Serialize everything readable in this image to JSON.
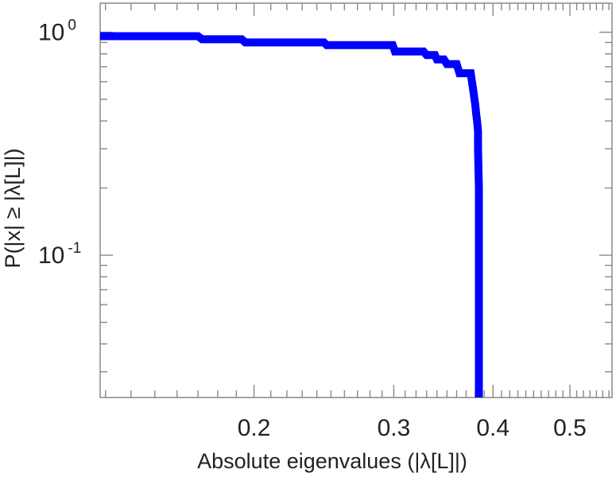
{
  "chart_data": {
    "type": "line",
    "title": "",
    "xlabel": "Absolute eigenvalues (|λ[L]|)",
    "ylabel": "P(|x| ≥ |λ[L]|)",
    "xscale": "log",
    "yscale": "log",
    "xlim": [
      0.128,
      0.565
    ],
    "ylim": [
      0.023,
      1.35
    ],
    "x_ticks": [
      {
        "value": 0.2,
        "label": "0.2"
      },
      {
        "value": 0.3,
        "label": "0.3"
      },
      {
        "value": 0.4,
        "label": "0.4"
      },
      {
        "value": 0.5,
        "label": "0.5"
      }
    ],
    "y_ticks": [
      {
        "value": 1,
        "base": "10",
        "exp": "0"
      },
      {
        "value": 0.1,
        "base": "10",
        "exp": "-1"
      }
    ],
    "grid": false,
    "legend": "none",
    "series": [
      {
        "color": "#0000ff",
        "x": [
          0.128,
          0.17,
          0.172,
          0.193,
          0.195,
          0.245,
          0.247,
          0.299,
          0.301,
          0.327,
          0.33,
          0.338,
          0.34,
          0.347,
          0.35,
          0.36,
          0.363,
          0.375,
          0.378,
          0.38,
          0.381,
          0.382,
          0.383,
          0.383,
          0.384,
          0.384
        ],
        "y": [
          0.96,
          0.96,
          0.93,
          0.93,
          0.9,
          0.9,
          0.875,
          0.875,
          0.82,
          0.82,
          0.79,
          0.79,
          0.755,
          0.755,
          0.72,
          0.72,
          0.655,
          0.655,
          0.54,
          0.47,
          0.43,
          0.4,
          0.36,
          0.3,
          0.2,
          0.023
        ]
      }
    ]
  }
}
